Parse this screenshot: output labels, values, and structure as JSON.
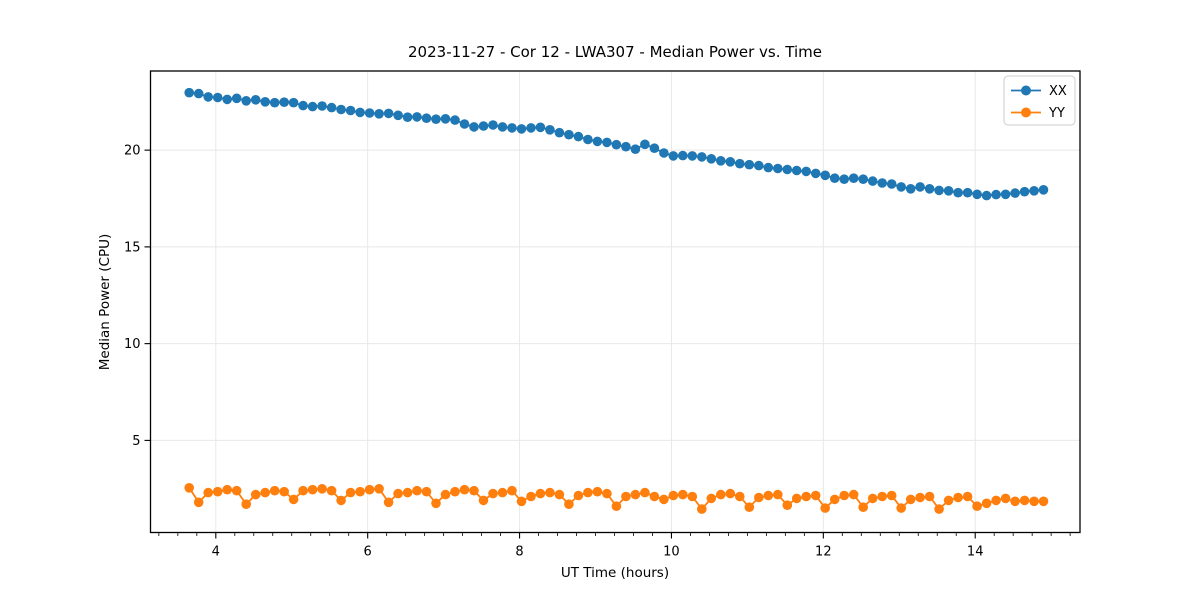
{
  "figure": {
    "background": "#ffffff"
  },
  "chart_data": {
    "type": "line",
    "title": "2023-11-27 - Cor 12 - LWA307 - Median Power vs. Time",
    "xlabel": "UT Time (hours)",
    "ylabel": "Median Power (CPU)",
    "xlim": [
      3.14,
      15.38
    ],
    "ylim": [
      0.24,
      24.09
    ],
    "xticks": [
      4,
      6,
      8,
      10,
      12,
      14
    ],
    "yticks": [
      5,
      10,
      15,
      20
    ],
    "x_minor_step": 0.25,
    "grid": true,
    "grid_color": "#e8e8e8",
    "axis_color": "#000000",
    "legend": {
      "position": "upper right",
      "labels": [
        "XX",
        "YY"
      ]
    },
    "x": [
      3.65,
      3.775,
      3.9,
      4.025,
      4.15,
      4.275,
      4.4,
      4.525,
      4.65,
      4.775,
      4.9,
      5.025,
      5.15,
      5.275,
      5.4,
      5.525,
      5.65,
      5.775,
      5.9,
      6.025,
      6.15,
      6.275,
      6.4,
      6.525,
      6.65,
      6.775,
      6.9,
      7.025,
      7.15,
      7.275,
      7.4,
      7.525,
      7.65,
      7.775,
      7.9,
      8.025,
      8.15,
      8.275,
      8.4,
      8.525,
      8.65,
      8.775,
      8.9,
      9.025,
      9.15,
      9.275,
      9.4,
      9.525,
      9.65,
      9.775,
      9.9,
      10.025,
      10.15,
      10.275,
      10.4,
      10.525,
      10.65,
      10.775,
      10.9,
      11.025,
      11.15,
      11.275,
      11.4,
      11.525,
      11.65,
      11.775,
      11.9,
      12.025,
      12.15,
      12.275,
      12.4,
      12.525,
      12.65,
      12.775,
      12.9,
      13.025,
      13.15,
      13.275,
      13.4,
      13.525,
      13.65,
      13.775,
      13.9,
      14.025,
      14.15,
      14.275,
      14.4,
      14.525,
      14.65,
      14.775,
      14.9
    ],
    "series": [
      {
        "name": "XX",
        "color": "#1f77b4",
        "values": [
          22.97,
          22.92,
          22.75,
          22.72,
          22.62,
          22.68,
          22.55,
          22.6,
          22.5,
          22.45,
          22.48,
          22.45,
          22.3,
          22.25,
          22.28,
          22.2,
          22.1,
          22.05,
          21.95,
          21.92,
          21.88,
          21.9,
          21.8,
          21.7,
          21.72,
          21.65,
          21.6,
          21.62,
          21.55,
          21.35,
          21.2,
          21.25,
          21.3,
          21.2,
          21.15,
          21.1,
          21.15,
          21.18,
          21.05,
          20.9,
          20.8,
          20.7,
          20.55,
          20.45,
          20.4,
          20.28,
          20.18,
          20.05,
          20.3,
          20.1,
          19.85,
          19.7,
          19.72,
          19.7,
          19.65,
          19.55,
          19.45,
          19.4,
          19.3,
          19.25,
          19.2,
          19.1,
          19.05,
          19.0,
          18.95,
          18.9,
          18.8,
          18.7,
          18.55,
          18.5,
          18.55,
          18.5,
          18.4,
          18.3,
          18.25,
          18.1,
          18.0,
          18.1,
          18.0,
          17.92,
          17.9,
          17.8,
          17.8,
          17.72,
          17.65,
          17.7,
          17.72,
          17.78,
          17.85,
          17.9,
          17.95
        ]
      },
      {
        "name": "YY",
        "color": "#ff7f0e",
        "values": [
          2.55,
          1.8,
          2.3,
          2.35,
          2.45,
          2.4,
          1.7,
          2.2,
          2.3,
          2.4,
          2.35,
          1.95,
          2.4,
          2.45,
          2.5,
          2.4,
          1.9,
          2.3,
          2.35,
          2.45,
          2.5,
          1.8,
          2.25,
          2.3,
          2.4,
          2.35,
          1.75,
          2.2,
          2.35,
          2.45,
          2.4,
          1.9,
          2.25,
          2.3,
          2.4,
          1.85,
          2.1,
          2.25,
          2.3,
          2.2,
          1.7,
          2.15,
          2.3,
          2.35,
          2.25,
          1.6,
          2.1,
          2.2,
          2.3,
          2.1,
          1.95,
          2.15,
          2.2,
          2.1,
          1.45,
          2.0,
          2.2,
          2.25,
          2.1,
          1.55,
          2.05,
          2.15,
          2.2,
          1.65,
          2.0,
          2.1,
          2.15,
          1.5,
          1.95,
          2.15,
          2.2,
          1.55,
          2.0,
          2.1,
          2.15,
          1.5,
          1.95,
          2.05,
          2.1,
          1.45,
          1.9,
          2.05,
          2.1,
          1.6,
          1.75,
          1.9,
          2.0,
          1.85,
          1.9,
          1.85,
          1.85
        ]
      }
    ]
  }
}
